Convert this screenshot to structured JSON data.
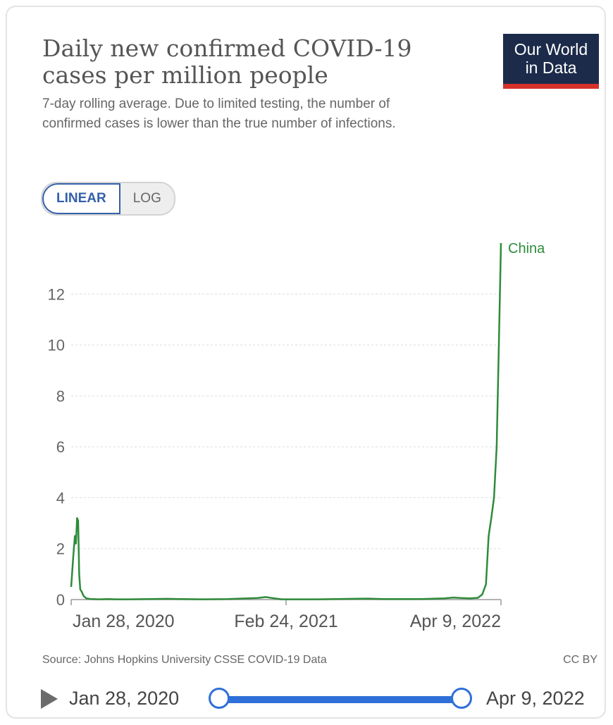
{
  "header": {
    "title": "Daily new confirmed COVID-19 cases per million people",
    "subtitle": "7-day rolling average. Due to limited testing, the number of confirmed cases is lower than the true number of infections.",
    "logo_line1": "Our World",
    "logo_line2": "in Data"
  },
  "scale_toggle": {
    "linear_label": "LINEAR",
    "log_label": "LOG",
    "selected": "LINEAR"
  },
  "chart_data": {
    "type": "line",
    "title": "Daily new confirmed COVID-19 cases per million people",
    "xlabel": "",
    "ylabel": "",
    "ylim": [
      0,
      14
    ],
    "yticks": [
      0,
      2,
      4,
      6,
      8,
      10,
      12
    ],
    "x_ticks": [
      "Jan 28, 2020",
      "Feb 24, 2021",
      "Apr 9, 2022"
    ],
    "grid": true,
    "series": [
      {
        "name": "China",
        "color": "#2e8b3a",
        "x": [
          "2020-01-28",
          "2020-02-01",
          "2020-02-04",
          "2020-02-06",
          "2020-02-08",
          "2020-02-10",
          "2020-02-12",
          "2020-02-14",
          "2020-02-17",
          "2020-02-20",
          "2020-02-25",
          "2020-03-05",
          "2020-03-20",
          "2020-04-05",
          "2020-04-20",
          "2020-05-15",
          "2020-06-20",
          "2020-07-25",
          "2020-08-20",
          "2020-10-01",
          "2020-11-15",
          "2021-01-10",
          "2021-01-25",
          "2021-02-10",
          "2021-02-24",
          "2021-05-01",
          "2021-08-05",
          "2021-09-01",
          "2021-11-10",
          "2021-12-25",
          "2022-01-10",
          "2022-01-25",
          "2022-02-10",
          "2022-02-25",
          "2022-03-05",
          "2022-03-12",
          "2022-03-17",
          "2022-03-22",
          "2022-03-27",
          "2022-04-01",
          "2022-04-05",
          "2022-04-09"
        ],
        "y": [
          0.5,
          1.7,
          2.5,
          2.2,
          3.2,
          3.1,
          1.0,
          0.4,
          0.3,
          0.15,
          0.05,
          0.02,
          0.01,
          0.02,
          0.01,
          0.01,
          0.02,
          0.03,
          0.02,
          0.01,
          0.02,
          0.06,
          0.1,
          0.05,
          0.01,
          0.01,
          0.04,
          0.02,
          0.02,
          0.05,
          0.08,
          0.06,
          0.05,
          0.07,
          0.2,
          0.6,
          2.5,
          3.2,
          4.0,
          6.0,
          10.0,
          14.0
        ]
      }
    ],
    "series_label": "China"
  },
  "footer": {
    "source": "Source: Johns Hopkins University CSSE COVID-19 Data",
    "license": "CC BY"
  },
  "timeline": {
    "start_label": "Jan 28, 2020",
    "end_label": "Apr 9, 2022",
    "start_value": "2020-01-28",
    "end_value": "2022-04-09"
  }
}
